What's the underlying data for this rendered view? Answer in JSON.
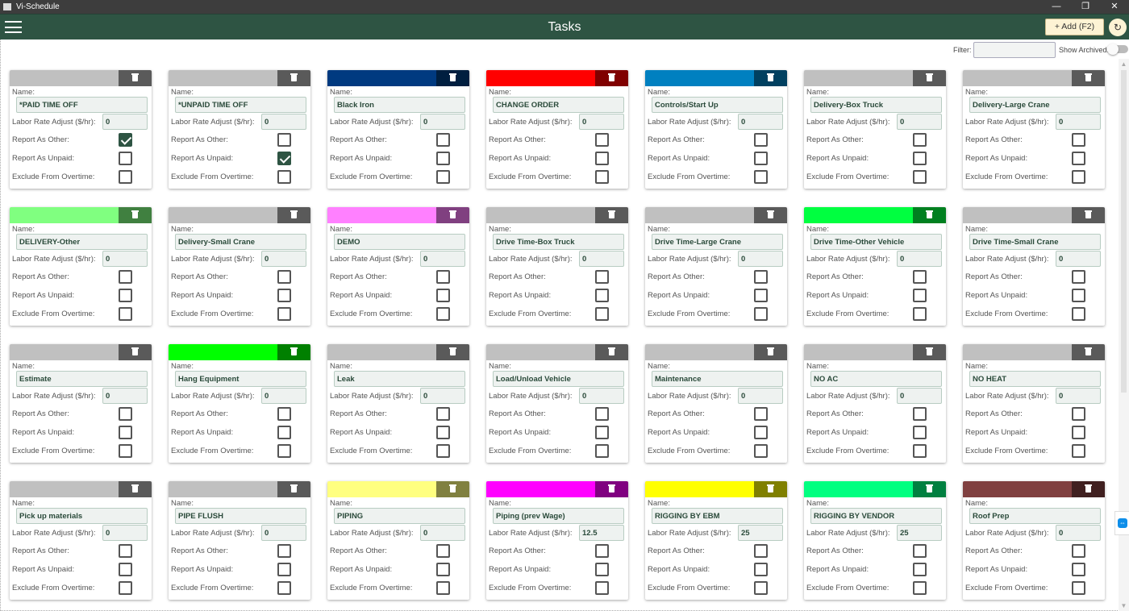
{
  "window": {
    "title": "Vi-Schedule",
    "buttons": [
      "—",
      "❐",
      "✕"
    ]
  },
  "header": {
    "title": "Tasks",
    "add_label": "+ Add (F2)",
    "refresh_icon": "refresh-icon",
    "menu_icon": "hamburger-icon"
  },
  "toolbar": {
    "filter_label": "Filter:",
    "filter_value": "",
    "show_archived_label": "Show Archived:",
    "show_archived": false
  },
  "labels": {
    "name": "Name:",
    "rate": "Labor Rate Adjust ($/hr):",
    "other": "Report As Other:",
    "unpaid": "Report As Unpaid:",
    "overtime": "Exclude From Overtime:"
  },
  "tasks": [
    {
      "name": "*PAID TIME OFF",
      "rate": "0",
      "other": true,
      "unpaid": false,
      "overtime": false,
      "color": "#c0c0c0",
      "dark": "#5a5a5a"
    },
    {
      "name": "*UNPAID TIME OFF",
      "rate": "0",
      "other": false,
      "unpaid": true,
      "overtime": false,
      "color": "#c0c0c0",
      "dark": "#5a5a5a"
    },
    {
      "name": "Black Iron",
      "rate": "0",
      "other": false,
      "unpaid": false,
      "overtime": false,
      "color": "#003a80",
      "dark": "#001f40"
    },
    {
      "name": "CHANGE ORDER",
      "rate": "0",
      "other": false,
      "unpaid": false,
      "overtime": false,
      "color": "#ff0000",
      "dark": "#800000"
    },
    {
      "name": "Controls/Start Up",
      "rate": "0",
      "other": false,
      "unpaid": false,
      "overtime": false,
      "color": "#0080c0",
      "dark": "#004060"
    },
    {
      "name": "Delivery-Box Truck",
      "rate": "0",
      "other": false,
      "unpaid": false,
      "overtime": false,
      "color": "#c0c0c0",
      "dark": "#5a5a5a"
    },
    {
      "name": "Delivery-Large Crane",
      "rate": "0",
      "other": false,
      "unpaid": false,
      "overtime": false,
      "color": "#c0c0c0",
      "dark": "#5a5a5a"
    },
    {
      "name": "DELIVERY-Other",
      "rate": "0",
      "other": false,
      "unpaid": false,
      "overtime": false,
      "color": "#80ff80",
      "dark": "#408040"
    },
    {
      "name": "Delivery-Small Crane",
      "rate": "0",
      "other": false,
      "unpaid": false,
      "overtime": false,
      "color": "#c0c0c0",
      "dark": "#5a5a5a"
    },
    {
      "name": "DEMO",
      "rate": "0",
      "other": false,
      "unpaid": false,
      "overtime": false,
      "color": "#ff80ff",
      "dark": "#804080"
    },
    {
      "name": "Drive Time-Box Truck",
      "rate": "0",
      "other": false,
      "unpaid": false,
      "overtime": false,
      "color": "#c0c0c0",
      "dark": "#5a5a5a"
    },
    {
      "name": "Drive Time-Large Crane",
      "rate": "0",
      "other": false,
      "unpaid": false,
      "overtime": false,
      "color": "#c0c0c0",
      "dark": "#5a5a5a"
    },
    {
      "name": "Drive Time-Other Vehicle",
      "rate": "0",
      "other": false,
      "unpaid": false,
      "overtime": false,
      "color": "#00ff40",
      "dark": "#008020"
    },
    {
      "name": "Drive Time-Small Crane",
      "rate": "0",
      "other": false,
      "unpaid": false,
      "overtime": false,
      "color": "#c0c0c0",
      "dark": "#5a5a5a"
    },
    {
      "name": "Estimate",
      "rate": "0",
      "other": false,
      "unpaid": false,
      "overtime": false,
      "color": "#c0c0c0",
      "dark": "#5a5a5a"
    },
    {
      "name": "Hang Equipment",
      "rate": "0",
      "other": false,
      "unpaid": false,
      "overtime": false,
      "color": "#00ff00",
      "dark": "#008000"
    },
    {
      "name": "Leak",
      "rate": "0",
      "other": false,
      "unpaid": false,
      "overtime": false,
      "color": "#c0c0c0",
      "dark": "#5a5a5a"
    },
    {
      "name": "Load/Unload Vehicle",
      "rate": "0",
      "other": false,
      "unpaid": false,
      "overtime": false,
      "color": "#c0c0c0",
      "dark": "#5a5a5a"
    },
    {
      "name": "Maintenance",
      "rate": "0",
      "other": false,
      "unpaid": false,
      "overtime": false,
      "color": "#c0c0c0",
      "dark": "#5a5a5a"
    },
    {
      "name": "NO AC",
      "rate": "0",
      "other": false,
      "unpaid": false,
      "overtime": false,
      "color": "#c0c0c0",
      "dark": "#5a5a5a"
    },
    {
      "name": "NO HEAT",
      "rate": "0",
      "other": false,
      "unpaid": false,
      "overtime": false,
      "color": "#c0c0c0",
      "dark": "#5a5a5a"
    },
    {
      "name": "Pick up materials",
      "rate": "0",
      "other": false,
      "unpaid": false,
      "overtime": false,
      "color": "#c0c0c0",
      "dark": "#5a5a5a"
    },
    {
      "name": "PIPE FLUSH",
      "rate": "0",
      "other": false,
      "unpaid": false,
      "overtime": false,
      "color": "#c0c0c0",
      "dark": "#5a5a5a"
    },
    {
      "name": "PIPING",
      "rate": "0",
      "other": false,
      "unpaid": false,
      "overtime": false,
      "color": "#ffff80",
      "dark": "#808040"
    },
    {
      "name": "Piping (prev Wage)",
      "rate": "12.5",
      "other": false,
      "unpaid": false,
      "overtime": false,
      "color": "#ff00ff",
      "dark": "#800080"
    },
    {
      "name": "RIGGING BY EBM",
      "rate": "25",
      "other": false,
      "unpaid": false,
      "overtime": false,
      "color": "#ffff00",
      "dark": "#808000"
    },
    {
      "name": "RIGGING BY VENDOR",
      "rate": "25",
      "other": false,
      "unpaid": false,
      "overtime": false,
      "color": "#00ff80",
      "dark": "#008040"
    },
    {
      "name": "Roof Prep",
      "rate": "0",
      "other": false,
      "unpaid": false,
      "overtime": false,
      "color": "#804040",
      "dark": "#402020"
    }
  ]
}
